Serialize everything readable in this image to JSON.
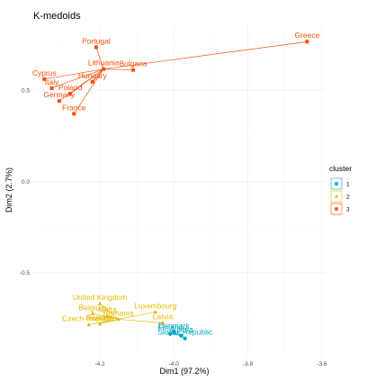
{
  "chart_data": {
    "type": "scatter",
    "title": "K-medoids",
    "xlabel": "Dim1 (97.2%)",
    "ylabel": "Dim2 (2.7%)",
    "xlim": [
      -4.38,
      -3.59
    ],
    "ylim": [
      -0.955,
      0.855
    ],
    "xticks": [
      -4.2,
      -4.0,
      -3.8,
      -3.6
    ],
    "xtick_labels": [
      "-4.2",
      "-4.0",
      "-3.8",
      "-3.6"
    ],
    "yticks": [
      0.5,
      0.0,
      -0.5
    ],
    "ytick_labels": [
      "0.5",
      "0.0",
      "-0.5"
    ],
    "grid": true,
    "legend": {
      "title": "cluster",
      "placement": "right",
      "entries": [
        {
          "label": "1",
          "color": "#00A9C2",
          "shape": "circle"
        },
        {
          "label": "2",
          "color": "#E8B800",
          "shape": "triangle"
        },
        {
          "label": "3",
          "color": "#FC4E07",
          "shape": "square"
        }
      ]
    },
    "clusters": [
      {
        "name": "1",
        "color": "#00A9C2",
        "points": [
          {
            "label": "Denmark",
            "x": -4.0,
            "y": -0.825
          },
          {
            "label": "Austria",
            "x": -3.98,
            "y": -0.845
          },
          {
            "label": "Finland",
            "x": -4.01,
            "y": -0.835
          },
          {
            "label": "Slovak Republic",
            "x": -3.97,
            "y": -0.86
          }
        ]
      },
      {
        "name": "2",
        "color": "#E8B800",
        "points": [
          {
            "label": "United Kingdom",
            "x": -4.2,
            "y": -0.67
          },
          {
            "label": "Belgium",
            "x": -4.22,
            "y": -0.725
          },
          {
            "label": "Malta",
            "x": -4.18,
            "y": -0.735
          },
          {
            "label": "Luxembourg",
            "x": -4.05,
            "y": -0.715
          },
          {
            "label": "Czech Republic",
            "x": -4.23,
            "y": -0.785
          },
          {
            "label": "Latvia",
            "x": -4.03,
            "y": -0.775
          },
          {
            "label": "Sweden",
            "x": -4.2,
            "y": -0.78
          },
          {
            "label": "Romania",
            "x": -4.15,
            "y": -0.755
          }
        ]
      },
      {
        "name": "3",
        "color": "#FC4E07",
        "points": [
          {
            "label": "Greece",
            "x": -3.64,
            "y": 0.765
          },
          {
            "label": "Portugal",
            "x": -4.21,
            "y": 0.735
          },
          {
            "label": "Bulgaria",
            "x": -4.11,
            "y": 0.61
          },
          {
            "label": "Lithuania",
            "x": -4.19,
            "y": 0.615
          },
          {
            "label": "Cyprus",
            "x": -4.35,
            "y": 0.56
          },
          {
            "label": "Hungary",
            "x": -4.22,
            "y": 0.545
          },
          {
            "label": "Italy",
            "x": -4.33,
            "y": 0.51
          },
          {
            "label": "Poland",
            "x": -4.28,
            "y": 0.48
          },
          {
            "label": "Germany",
            "x": -4.31,
            "y": 0.44
          },
          {
            "label": "France",
            "x": -4.27,
            "y": 0.37
          }
        ]
      }
    ]
  }
}
